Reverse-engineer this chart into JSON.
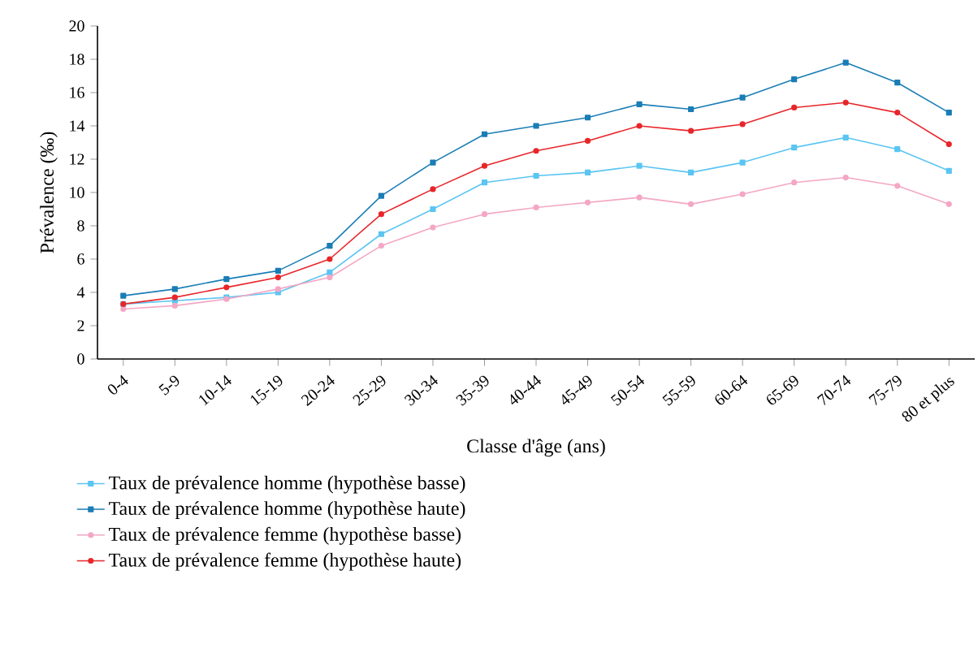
{
  "chart_data": {
    "type": "line",
    "xlabel": "Classe d'âge (ans)",
    "ylabel": "Prévalence (‰)",
    "categories": [
      "0-4",
      "5-9",
      "10-14",
      "15-19",
      "20-24",
      "25-29",
      "30-34",
      "35-39",
      "40-44",
      "45-49",
      "50-54",
      "55-59",
      "60-64",
      "65-69",
      "70-74",
      "75-79",
      "80 et plus"
    ],
    "ylim": [
      0,
      20
    ],
    "yticks": [
      0,
      2,
      4,
      6,
      8,
      10,
      12,
      14,
      16,
      18,
      20
    ],
    "grid": false,
    "legend": "bottom",
    "line_style": "solid",
    "series": [
      {
        "name": "Taux de prévalence homme (hypothèse basse)",
        "color": "#5bc5f2",
        "marker": "square",
        "values": [
          3.3,
          3.5,
          3.7,
          4.0,
          5.2,
          7.5,
          9.0,
          10.6,
          11.0,
          11.2,
          11.6,
          11.2,
          11.8,
          12.7,
          13.3,
          12.6,
          11.3
        ]
      },
      {
        "name": "Taux de prévalence homme (hypothèse haute)",
        "color": "#1a7db5",
        "marker": "square",
        "values": [
          3.8,
          4.2,
          4.8,
          5.3,
          6.8,
          9.8,
          11.8,
          13.5,
          14.0,
          14.5,
          15.3,
          15.0,
          15.7,
          16.8,
          17.8,
          16.6,
          14.8
        ]
      },
      {
        "name": "Taux de prévalence femme (hypothèse basse)",
        "color": "#f4a7c4",
        "marker": "circle",
        "values": [
          3.0,
          3.2,
          3.6,
          4.2,
          4.9,
          6.8,
          7.9,
          8.7,
          9.1,
          9.4,
          9.7,
          9.3,
          9.9,
          10.6,
          10.9,
          10.4,
          9.3
        ]
      },
      {
        "name": "Taux de prévalence femme (hypothèse haute)",
        "color": "#e8262a",
        "marker": "circle",
        "values": [
          3.3,
          3.7,
          4.3,
          4.9,
          6.0,
          8.7,
          10.2,
          11.6,
          12.5,
          13.1,
          14.0,
          13.7,
          14.1,
          15.1,
          15.4,
          14.8,
          12.9
        ]
      }
    ]
  }
}
